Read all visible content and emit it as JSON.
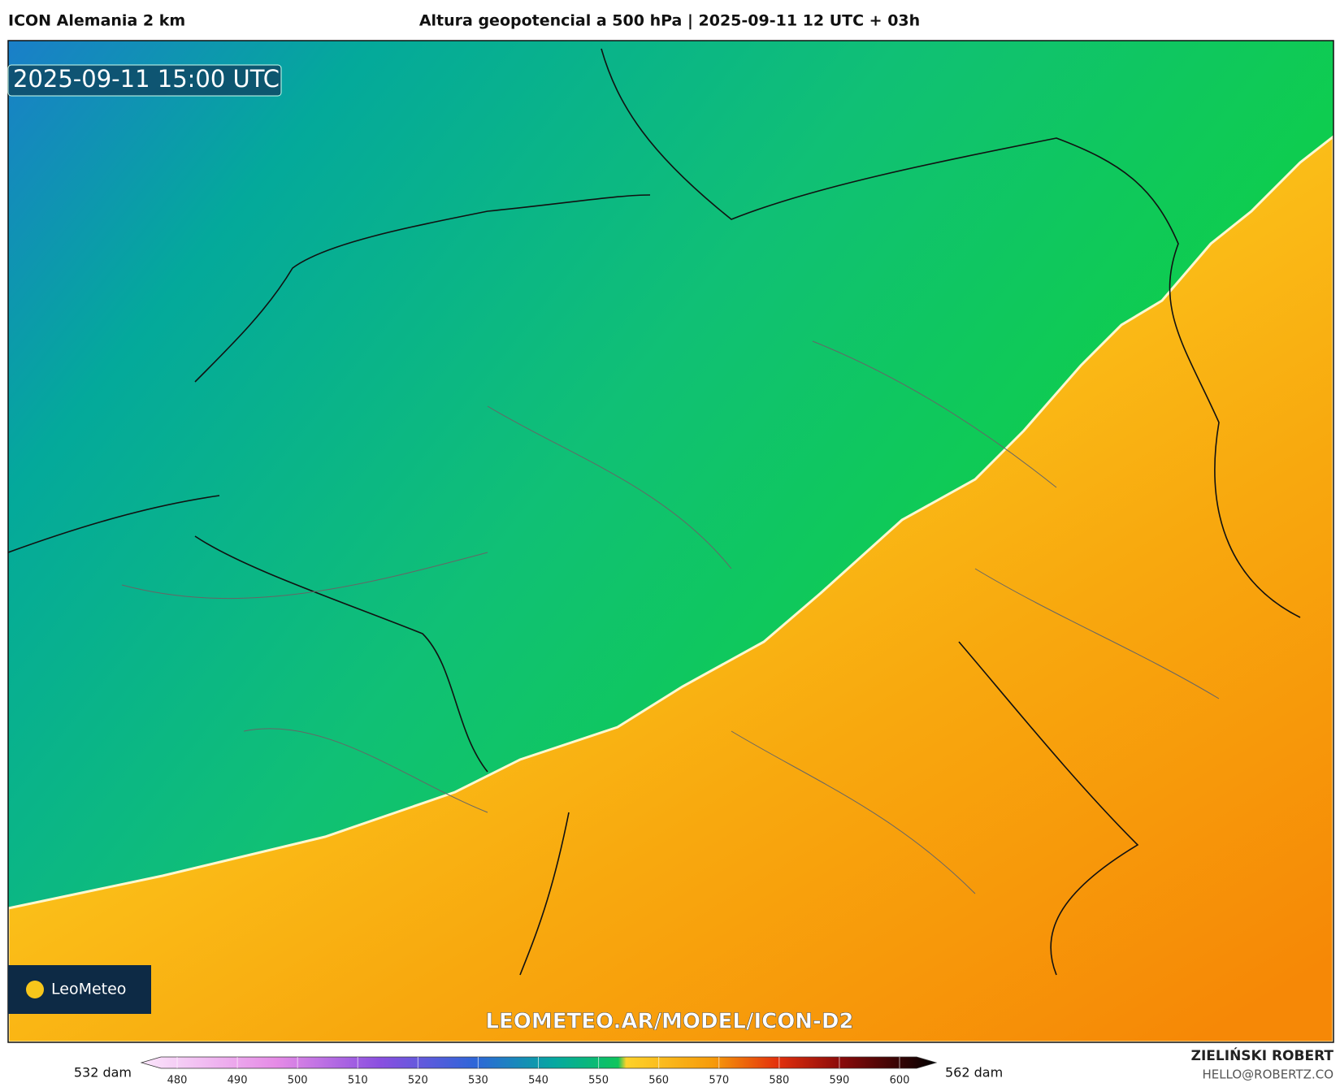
{
  "header": {
    "left_title": "ICON Alemania 2 km",
    "center_title": "Altura geopotencial a 500 hPa | 2025-09-11 12 UTC + 03h"
  },
  "map": {
    "timestamp": "2025-09-11 15:00 UTC",
    "logo": "LeoMeteo",
    "watermark": "LEOMETEO.AR/MODEL/ICON-D2"
  },
  "colorbar": {
    "min_label": "532 dam",
    "max_label": "562 dam",
    "ticks": [
      480,
      490,
      500,
      510,
      520,
      530,
      540,
      550,
      560,
      570,
      580,
      590,
      600
    ]
  },
  "footer": {
    "author": "ZIELIŃSKI ROBERT",
    "contact": "HELLO@ROBERTZ.CO"
  }
}
